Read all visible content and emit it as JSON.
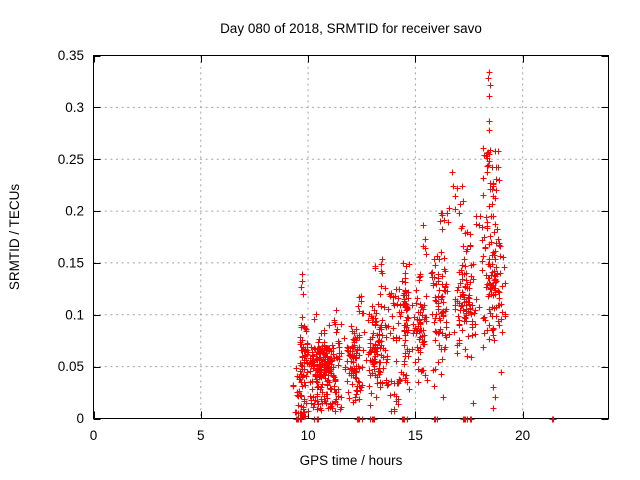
{
  "chart_data": {
    "type": "scatter",
    "title": "Day 080 of 2018, SRMTID for receiver savo",
    "xlabel": "GPS time / hours",
    "ylabel": "SRMTID / TECUs",
    "xlim": [
      0,
      24
    ],
    "ylim": [
      0,
      0.35
    ],
    "xticks": {
      "values": [
        0,
        5,
        10,
        15,
        20
      ],
      "labels": [
        "0",
        "5",
        "10",
        "15",
        "20"
      ]
    },
    "yticks": {
      "values": [
        0,
        0.05,
        0.1,
        0.15,
        0.2,
        0.25,
        0.3,
        0.35
      ],
      "labels": [
        "0",
        "0.05",
        "0.1",
        "0.15",
        "0.2",
        "0.25",
        "0.3",
        "0.35"
      ]
    },
    "grid": true,
    "legend": "none",
    "marker": {
      "shape": "plus",
      "color": "#ff0000",
      "size": 7
    },
    "colors": {
      "marker": "#ff0000",
      "grid": "#a8a8a8",
      "axis": "#000000",
      "text": "#000000"
    },
    "data_extent": {
      "x": [
        9.3,
        21.4
      ],
      "y": [
        0,
        0.334
      ]
    },
    "points": [
      [
        18.45,
        0.334
      ],
      [
        18.4,
        0.328
      ],
      [
        18.47,
        0.322
      ],
      [
        18.45,
        0.311
      ],
      [
        18.42,
        0.287
      ],
      [
        18.44,
        0.278
      ],
      [
        18.5,
        0.259
      ],
      [
        18.33,
        0.256
      ],
      [
        16.7,
        0.238
      ],
      [
        15.35,
        0.187
      ],
      [
        9.7,
        0.139
      ],
      [
        9.73,
        0.133
      ],
      [
        9.68,
        0.127
      ],
      [
        9.76,
        0.12
      ],
      [
        9.7,
        0.098
      ],
      [
        11.3,
        0.105
      ],
      [
        12.45,
        0.118
      ],
      [
        17.7,
        0.015
      ],
      [
        18.6,
        0.03
      ],
      [
        18.72,
        0.021
      ],
      [
        18.62,
        0.01
      ],
      [
        19.0,
        0.045
      ]
    ],
    "clusters": [
      {
        "n": 12,
        "x": [
          9.3,
          9.58
        ],
        "y": [
          0.005,
          0.05
        ],
        "m": "u"
      },
      {
        "n": 55,
        "x": [
          9.55,
          9.98
        ],
        "y": [
          0.012,
          0.095
        ],
        "m": "u"
      },
      {
        "n": 10,
        "x": [
          9.6,
          9.85
        ],
        "y": [
          0.002,
          0.014
        ],
        "m": "u"
      },
      {
        "n": 175,
        "x": [
          9.95,
          11.65
        ],
        "y": [
          0.022,
          0.082
        ],
        "m": "g"
      },
      {
        "n": 40,
        "x": [
          10.0,
          11.6
        ],
        "y": [
          0.006,
          0.024
        ],
        "m": "u"
      },
      {
        "n": 12,
        "x": [
          10.15,
          11.55
        ],
        "y": [
          0.082,
          0.104
        ],
        "m": "u"
      },
      {
        "n": 85,
        "x": [
          11.6,
          12.65
        ],
        "y": [
          0.008,
          0.1
        ],
        "m": "g"
      },
      {
        "n": 6,
        "x": [
          12.28,
          12.6
        ],
        "y": [
          0.1,
          0.126
        ],
        "m": "u"
      },
      {
        "n": 95,
        "x": [
          12.65,
          13.6
        ],
        "y": [
          0.01,
          0.138
        ],
        "m": "g"
      },
      {
        "n": 6,
        "x": [
          13.1,
          13.5
        ],
        "y": [
          0.138,
          0.155
        ],
        "m": "u"
      },
      {
        "n": 55,
        "x": [
          13.6,
          14.3
        ],
        "y": [
          0.006,
          0.128
        ],
        "m": "u"
      },
      {
        "n": 60,
        "x": [
          14.3,
          14.78
        ],
        "y": [
          0.015,
          0.162
        ],
        "m": "g"
      },
      {
        "n": 65,
        "x": [
          14.78,
          15.6
        ],
        "y": [
          0.02,
          0.152
        ],
        "m": "g"
      },
      {
        "n": 4,
        "x": [
          15.25,
          15.5
        ],
        "y": [
          0.152,
          0.178
        ],
        "m": "u"
      },
      {
        "n": 72,
        "x": [
          15.6,
          16.7
        ],
        "y": [
          0.048,
          0.176
        ],
        "m": "g"
      },
      {
        "n": 8,
        "x": [
          16.1,
          16.68
        ],
        "y": [
          0.176,
          0.2
        ],
        "m": "u"
      },
      {
        "n": 5,
        "x": [
          15.7,
          16.45
        ],
        "y": [
          0.02,
          0.048
        ],
        "m": "u"
      },
      {
        "n": 8,
        "x": [
          16.5,
          17.25
        ],
        "y": [
          0.2,
          0.226
        ],
        "m": "u"
      },
      {
        "n": 95,
        "x": [
          16.7,
          18.05
        ],
        "y": [
          0.055,
          0.175
        ],
        "m": "g"
      },
      {
        "n": 10,
        "x": [
          17.0,
          18.05
        ],
        "y": [
          0.175,
          0.2
        ],
        "m": "u"
      },
      {
        "n": 90,
        "x": [
          18.05,
          19.0
        ],
        "y": [
          0.06,
          0.21
        ],
        "m": "g"
      },
      {
        "n": 28,
        "x": [
          18.1,
          18.92
        ],
        "y": [
          0.21,
          0.262
        ],
        "m": "u"
      },
      {
        "n": 25,
        "x": [
          18.5,
          19.22
        ],
        "y": [
          0.08,
          0.17
        ],
        "m": "u"
      }
    ],
    "zero_clusters": [
      {
        "x": [
          9.4,
          9.68
        ],
        "n": 10
      },
      {
        "x": [
          10.28,
          10.46
        ],
        "n": 7
      },
      {
        "x": [
          12.3,
          12.52
        ],
        "n": 7
      },
      {
        "x": [
          12.9,
          13.06
        ],
        "n": 6
      },
      {
        "x": [
          14.33,
          14.62
        ],
        "n": 9
      },
      {
        "x": [
          15.84,
          16.0
        ],
        "n": 6
      },
      {
        "x": [
          17.15,
          17.62
        ],
        "n": 14
      },
      {
        "x": [
          21.3,
          21.42
        ],
        "n": 4
      }
    ]
  }
}
